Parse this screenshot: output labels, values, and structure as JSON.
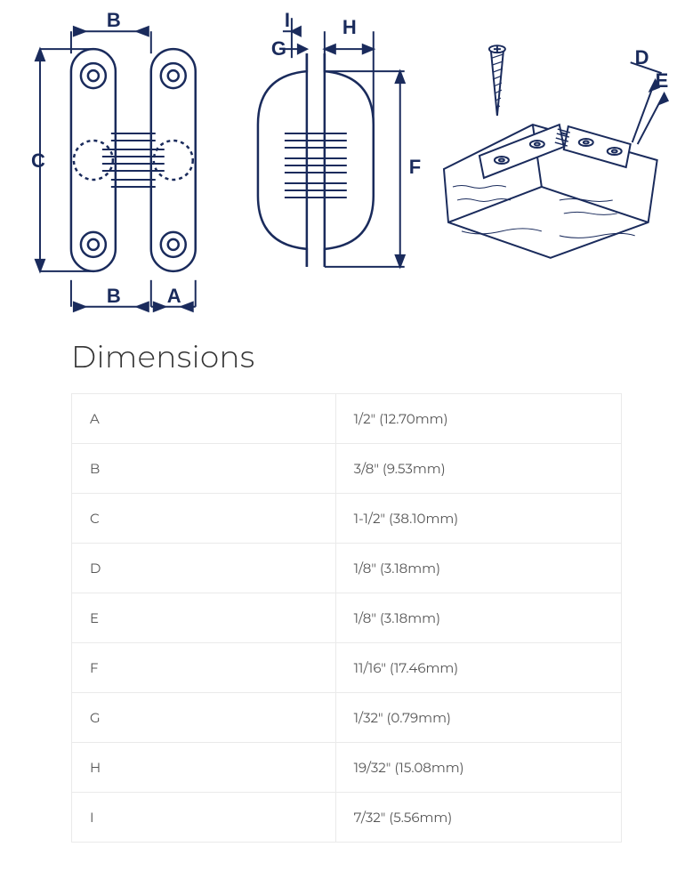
{
  "diagram": {
    "labels": {
      "A": "A",
      "B": "B",
      "C": "C",
      "D": "D",
      "E": "E",
      "F": "F",
      "G": "G",
      "H": "H",
      "I": "I"
    },
    "line_color": "#1a2b5c",
    "line_width_main": 2.5,
    "line_width_thin": 1.2,
    "font_family": "Arial",
    "font_size_label": 22,
    "font_weight_label": "bold"
  },
  "dimensions_section": {
    "title": "Dimensions",
    "title_fontsize": 34,
    "title_color": "#333333",
    "border_color": "#eaeaea",
    "cell_text_color": "#555555",
    "cell_fontsize": 15,
    "rows": [
      {
        "key": "A",
        "value": "1/2\" (12.70mm)"
      },
      {
        "key": "B",
        "value": "3/8\" (9.53mm)"
      },
      {
        "key": "C",
        "value": "1-1/2\" (38.10mm)"
      },
      {
        "key": "D",
        "value": "1/8\" (3.18mm)"
      },
      {
        "key": "E",
        "value": "1/8\" (3.18mm)"
      },
      {
        "key": "F",
        "value": "11/16\" (17.46mm)"
      },
      {
        "key": "G",
        "value": "1/32\" (0.79mm)"
      },
      {
        "key": "H",
        "value": "19/32\" (15.08mm)"
      },
      {
        "key": "I",
        "value": "7/32\" (5.56mm)"
      }
    ]
  }
}
